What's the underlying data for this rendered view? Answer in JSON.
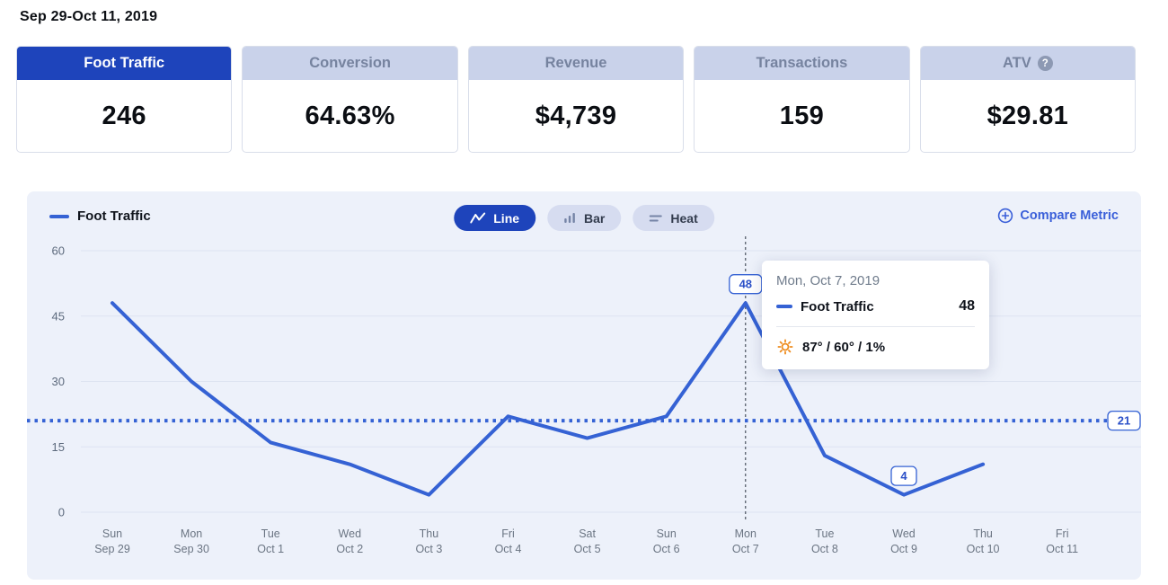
{
  "header": {
    "date_range": "Sep 29-Oct 11, 2019"
  },
  "metric_cards": [
    {
      "label": "Foot Traffic",
      "value": "246",
      "selected": true
    },
    {
      "label": "Conversion",
      "value": "64.63%",
      "selected": false
    },
    {
      "label": "Revenue",
      "value": "$4,739",
      "selected": false
    },
    {
      "label": "Transactions",
      "value": "159",
      "selected": false
    },
    {
      "label": "ATV",
      "value": "$29.81",
      "selected": false,
      "has_help_icon": true
    }
  ],
  "chart_panel": {
    "legend": {
      "label": "Foot Traffic",
      "swatch_color": "#3562d4"
    },
    "view_toggles": [
      {
        "label": "Line",
        "selected": true,
        "icon": "line-chart-icon"
      },
      {
        "label": "Bar",
        "selected": false,
        "icon": "bar-chart-icon"
      },
      {
        "label": "Heat",
        "selected": false,
        "icon": "heat-chart-icon"
      }
    ],
    "compare_metric": {
      "label": "Compare Metric",
      "icon": "circle-plus-icon"
    }
  },
  "tooltip": {
    "title": "Mon, Oct 7, 2019",
    "series_label": "Foot Traffic",
    "series_value": "48",
    "weather_icon": "sun-icon",
    "weather_text": "87° / 60° / 1%"
  },
  "chart_data": {
    "type": "line",
    "title": "Foot Traffic",
    "x": [
      {
        "day": "Sun",
        "date": "Sep 29"
      },
      {
        "day": "Mon",
        "date": "Sep 30"
      },
      {
        "day": "Tue",
        "date": "Oct 1"
      },
      {
        "day": "Wed",
        "date": "Oct 2"
      },
      {
        "day": "Thu",
        "date": "Oct 3"
      },
      {
        "day": "Fri",
        "date": "Oct 4"
      },
      {
        "day": "Sat",
        "date": "Oct 5"
      },
      {
        "day": "Sun",
        "date": "Oct 6"
      },
      {
        "day": "Mon",
        "date": "Oct 7"
      },
      {
        "day": "Tue",
        "date": "Oct 8"
      },
      {
        "day": "Wed",
        "date": "Oct 9"
      },
      {
        "day": "Thu",
        "date": "Oct 10"
      },
      {
        "day": "Fri",
        "date": "Oct 11"
      }
    ],
    "values": [
      48,
      30,
      16,
      11,
      4,
      22,
      17,
      22,
      48,
      13,
      4,
      11,
      null
    ],
    "ylim": [
      0,
      60
    ],
    "y_ticks": [
      0,
      15,
      30,
      45,
      60
    ],
    "average_line": {
      "value": 21,
      "label": "21",
      "style": "dotted"
    },
    "highlighted_point": {
      "index": 8,
      "label": "48"
    },
    "labeled_points": [
      {
        "index": 8,
        "label": "48"
      },
      {
        "index": 10,
        "label": "4"
      }
    ],
    "legend_position": "top-left",
    "grid": true,
    "line_color": "#3562d4"
  },
  "colors": {
    "accent_blue": "#1e44bb",
    "line_blue": "#3562d4",
    "panel_bg": "#edf1fa",
    "card_header_bg": "#c9d2ea",
    "card_header_text": "#76839f",
    "axis_text": "#6b7583",
    "compare_blue": "#3a5fd9",
    "badge_text": "#2b50c8"
  }
}
